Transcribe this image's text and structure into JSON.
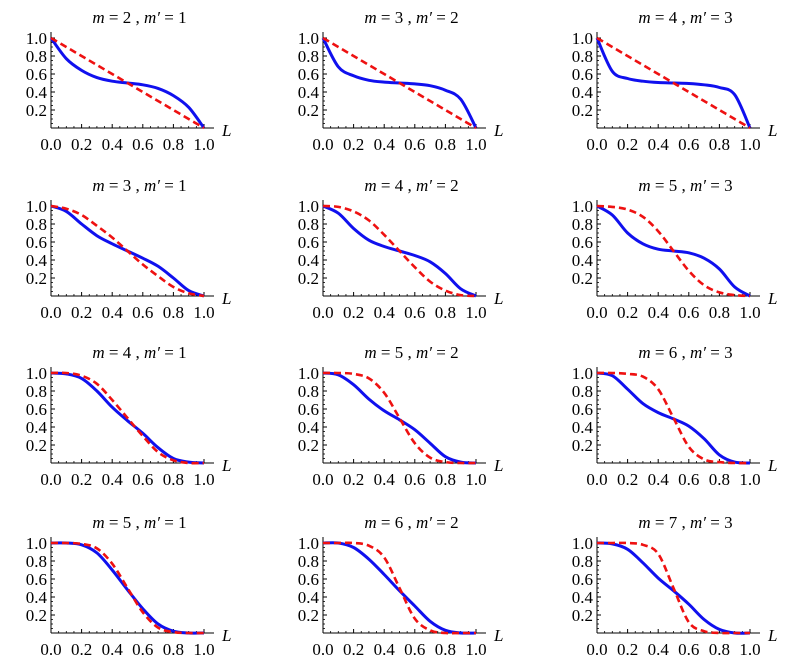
{
  "figure": {
    "colors": {
      "blue": "#1010ee",
      "red": "#ee1111",
      "axis": "#000000"
    },
    "x_tick_labels": [
      "0.0",
      "0.2",
      "0.4",
      "0.6",
      "0.8",
      "1.0"
    ],
    "y_tick_labels": [
      "0.2",
      "0.4",
      "0.6",
      "0.8",
      "1.0"
    ],
    "x_axis_label": "L"
  },
  "chart_data": [
    {
      "type": "line",
      "title": "m = 2 , m′ = 1",
      "xlabel": "L",
      "xlim": [
        0,
        1
      ],
      "ylim": [
        0,
        1
      ],
      "m": 2,
      "mp": 1,
      "series": [
        {
          "color": "#1010ee",
          "style": "solid",
          "x": [
            0,
            0.1,
            0.2,
            0.3,
            0.4,
            0.5,
            0.6,
            0.7,
            0.8,
            0.9,
            1.0
          ],
          "y": [
            1,
            0.77,
            0.64,
            0.56,
            0.52,
            0.5,
            0.48,
            0.44,
            0.36,
            0.23,
            0
          ]
        },
        {
          "color": "#ee1111",
          "style": "dashed",
          "x": [
            0,
            0.1,
            0.2,
            0.3,
            0.4,
            0.5,
            0.6,
            0.7,
            0.8,
            0.9,
            1.0
          ],
          "y": [
            1,
            0.9,
            0.8,
            0.7,
            0.6,
            0.5,
            0.4,
            0.3,
            0.2,
            0.1,
            0
          ]
        }
      ]
    },
    {
      "type": "line",
      "title": "m = 3 , m′ = 2",
      "xlabel": "L",
      "xlim": [
        0,
        1
      ],
      "ylim": [
        0,
        1
      ],
      "m": 3,
      "mp": 2,
      "series": [
        {
          "color": "#1010ee",
          "style": "solid",
          "x": [
            0,
            0.1,
            0.2,
            0.3,
            0.4,
            0.5,
            0.6,
            0.7,
            0.8,
            0.9,
            1.0
          ],
          "y": [
            1,
            0.68,
            0.58,
            0.53,
            0.51,
            0.5,
            0.49,
            0.47,
            0.42,
            0.32,
            0
          ]
        },
        {
          "color": "#ee1111",
          "style": "dashed",
          "x": [
            0,
            0.1,
            0.2,
            0.3,
            0.4,
            0.5,
            0.6,
            0.7,
            0.8,
            0.9,
            1.0
          ],
          "y": [
            1,
            0.9,
            0.8,
            0.7,
            0.6,
            0.5,
            0.4,
            0.3,
            0.2,
            0.1,
            0
          ]
        }
      ]
    },
    {
      "type": "line",
      "title": "m = 4 , m′ = 3",
      "xlabel": "L",
      "xlim": [
        0,
        1
      ],
      "ylim": [
        0,
        1
      ],
      "m": 4,
      "mp": 3,
      "series": [
        {
          "color": "#1010ee",
          "style": "solid",
          "x": [
            0,
            0.1,
            0.2,
            0.3,
            0.4,
            0.5,
            0.6,
            0.7,
            0.8,
            0.9,
            1.0
          ],
          "y": [
            1,
            0.63,
            0.55,
            0.52,
            0.505,
            0.5,
            0.495,
            0.48,
            0.45,
            0.37,
            0
          ]
        },
        {
          "color": "#ee1111",
          "style": "dashed",
          "x": [
            0,
            0.1,
            0.2,
            0.3,
            0.4,
            0.5,
            0.6,
            0.7,
            0.8,
            0.9,
            1.0
          ],
          "y": [
            1,
            0.9,
            0.8,
            0.7,
            0.6,
            0.5,
            0.4,
            0.3,
            0.2,
            0.1,
            0
          ]
        }
      ]
    },
    {
      "type": "line",
      "title": "m = 3 , m′ = 1",
      "xlabel": "L",
      "xlim": [
        0,
        1
      ],
      "ylim": [
        0,
        1
      ],
      "m": 3,
      "mp": 1,
      "series": [
        {
          "color": "#1010ee",
          "style": "solid",
          "x": [
            0,
            0.1,
            0.2,
            0.3,
            0.4,
            0.5,
            0.6,
            0.7,
            0.8,
            0.9,
            1.0
          ],
          "y": [
            1,
            0.94,
            0.8,
            0.67,
            0.58,
            0.5,
            0.42,
            0.33,
            0.2,
            0.06,
            0
          ]
        },
        {
          "color": "#ee1111",
          "style": "dashed",
          "x": [
            0,
            0.1,
            0.2,
            0.3,
            0.4,
            0.5,
            0.6,
            0.7,
            0.8,
            0.9,
            1.0
          ],
          "y": [
            1,
            0.97,
            0.9,
            0.78,
            0.65,
            0.5,
            0.35,
            0.22,
            0.1,
            0.03,
            0
          ]
        }
      ]
    },
    {
      "type": "line",
      "title": "m = 4 , m′ = 2",
      "xlabel": "L",
      "xlim": [
        0,
        1
      ],
      "ylim": [
        0,
        1
      ],
      "m": 4,
      "mp": 2,
      "series": [
        {
          "color": "#1010ee",
          "style": "solid",
          "x": [
            0,
            0.1,
            0.2,
            0.3,
            0.4,
            0.5,
            0.6,
            0.7,
            0.8,
            0.9,
            1.0
          ],
          "y": [
            1,
            0.92,
            0.75,
            0.62,
            0.55,
            0.5,
            0.45,
            0.38,
            0.25,
            0.08,
            0
          ]
        },
        {
          "color": "#ee1111",
          "style": "dashed",
          "x": [
            0,
            0.1,
            0.2,
            0.3,
            0.4,
            0.5,
            0.6,
            0.7,
            0.8,
            0.9,
            1.0
          ],
          "y": [
            1,
            0.99,
            0.94,
            0.84,
            0.68,
            0.5,
            0.32,
            0.16,
            0.06,
            0.01,
            0
          ]
        }
      ]
    },
    {
      "type": "line",
      "title": "m = 5 , m′ = 3",
      "xlabel": "L",
      "xlim": [
        0,
        1
      ],
      "ylim": [
        0,
        1
      ],
      "m": 5,
      "mp": 3,
      "series": [
        {
          "color": "#1010ee",
          "style": "solid",
          "x": [
            0,
            0.1,
            0.2,
            0.3,
            0.4,
            0.5,
            0.6,
            0.7,
            0.8,
            0.9,
            1.0
          ],
          "y": [
            1,
            0.9,
            0.7,
            0.58,
            0.52,
            0.5,
            0.48,
            0.42,
            0.3,
            0.1,
            0
          ]
        },
        {
          "color": "#ee1111",
          "style": "dashed",
          "x": [
            0,
            0.1,
            0.2,
            0.3,
            0.4,
            0.5,
            0.6,
            0.7,
            0.8,
            0.9,
            1.0
          ],
          "y": [
            1,
            0.99,
            0.96,
            0.88,
            0.72,
            0.5,
            0.28,
            0.12,
            0.04,
            0.01,
            0
          ]
        }
      ]
    },
    {
      "type": "line",
      "title": "m = 4 , m′ = 1",
      "xlabel": "L",
      "xlim": [
        0,
        1
      ],
      "ylim": [
        0,
        1
      ],
      "m": 4,
      "mp": 1,
      "series": [
        {
          "color": "#1010ee",
          "style": "solid",
          "x": [
            0,
            0.1,
            0.2,
            0.3,
            0.4,
            0.5,
            0.6,
            0.7,
            0.8,
            0.9,
            1.0
          ],
          "y": [
            1,
            0.99,
            0.94,
            0.8,
            0.62,
            0.47,
            0.33,
            0.17,
            0.05,
            0.01,
            0
          ]
        },
        {
          "color": "#ee1111",
          "style": "dashed",
          "x": [
            0,
            0.1,
            0.2,
            0.3,
            0.4,
            0.5,
            0.6,
            0.7,
            0.8,
            0.9,
            1.0
          ],
          "y": [
            1,
            1,
            0.97,
            0.88,
            0.7,
            0.5,
            0.3,
            0.12,
            0.03,
            0,
            0
          ]
        }
      ]
    },
    {
      "type": "line",
      "title": "m = 5 , m′ = 2",
      "xlabel": "L",
      "xlim": [
        0,
        1
      ],
      "ylim": [
        0,
        1
      ],
      "m": 5,
      "mp": 2,
      "series": [
        {
          "color": "#1010ee",
          "style": "solid",
          "x": [
            0,
            0.1,
            0.2,
            0.3,
            0.4,
            0.5,
            0.6,
            0.7,
            0.8,
            0.9,
            1.0
          ],
          "y": [
            1,
            0.98,
            0.87,
            0.71,
            0.58,
            0.48,
            0.37,
            0.22,
            0.07,
            0.01,
            0
          ]
        },
        {
          "color": "#ee1111",
          "style": "dashed",
          "x": [
            0,
            0.1,
            0.2,
            0.3,
            0.4,
            0.5,
            0.6,
            0.7,
            0.8,
            0.9,
            1.0
          ],
          "y": [
            1,
            1,
            0.99,
            0.94,
            0.78,
            0.5,
            0.22,
            0.06,
            0.01,
            0,
            0
          ]
        }
      ]
    },
    {
      "type": "line",
      "title": "m = 6 , m′ = 3",
      "xlabel": "L",
      "xlim": [
        0,
        1
      ],
      "ylim": [
        0,
        1
      ],
      "m": 6,
      "mp": 3,
      "series": [
        {
          "color": "#1010ee",
          "style": "solid",
          "x": [
            0,
            0.1,
            0.2,
            0.3,
            0.4,
            0.5,
            0.6,
            0.7,
            0.8,
            0.9,
            1.0
          ],
          "y": [
            1,
            0.97,
            0.82,
            0.66,
            0.56,
            0.49,
            0.41,
            0.27,
            0.09,
            0.01,
            0
          ]
        },
        {
          "color": "#ee1111",
          "style": "dashed",
          "x": [
            0,
            0.1,
            0.2,
            0.3,
            0.4,
            0.5,
            0.6,
            0.7,
            0.8,
            0.9,
            1.0
          ],
          "y": [
            1,
            1,
            0.99,
            0.96,
            0.82,
            0.5,
            0.18,
            0.04,
            0.01,
            0,
            0
          ]
        }
      ]
    },
    {
      "type": "line",
      "title": "m = 5 , m′ = 1",
      "xlabel": "L",
      "xlim": [
        0,
        1
      ],
      "ylim": [
        0,
        1
      ],
      "m": 5,
      "mp": 1,
      "series": [
        {
          "color": "#1010ee",
          "style": "solid",
          "x": [
            0,
            0.1,
            0.2,
            0.3,
            0.4,
            0.5,
            0.6,
            0.7,
            0.8,
            0.9,
            1.0
          ],
          "y": [
            1,
            1,
            0.98,
            0.89,
            0.7,
            0.48,
            0.27,
            0.1,
            0.02,
            0,
            0
          ]
        },
        {
          "color": "#ee1111",
          "style": "dashed",
          "x": [
            0,
            0.1,
            0.2,
            0.3,
            0.4,
            0.5,
            0.6,
            0.7,
            0.8,
            0.9,
            1.0
          ],
          "y": [
            1,
            1,
            0.99,
            0.94,
            0.77,
            0.5,
            0.23,
            0.06,
            0.01,
            0,
            0
          ]
        }
      ]
    },
    {
      "type": "line",
      "title": "m = 6 , m′ = 2",
      "xlabel": "L",
      "xlim": [
        0,
        1
      ],
      "ylim": [
        0,
        1
      ],
      "m": 6,
      "mp": 2,
      "series": [
        {
          "color": "#1010ee",
          "style": "solid",
          "x": [
            0,
            0.1,
            0.2,
            0.3,
            0.4,
            0.5,
            0.6,
            0.7,
            0.8,
            0.9,
            1.0
          ],
          "y": [
            1,
            1,
            0.95,
            0.82,
            0.65,
            0.47,
            0.3,
            0.13,
            0.03,
            0,
            0
          ]
        },
        {
          "color": "#ee1111",
          "style": "dashed",
          "x": [
            0,
            0.1,
            0.2,
            0.3,
            0.4,
            0.5,
            0.6,
            0.7,
            0.8,
            0.9,
            1.0
          ],
          "y": [
            1,
            1,
            1,
            0.97,
            0.84,
            0.5,
            0.16,
            0.03,
            0,
            0,
            0
          ]
        }
      ]
    },
    {
      "type": "line",
      "title": "m = 7 , m′ = 3",
      "xlabel": "L",
      "xlim": [
        0,
        1
      ],
      "ylim": [
        0,
        1
      ],
      "m": 7,
      "mp": 3,
      "series": [
        {
          "color": "#1010ee",
          "style": "solid",
          "x": [
            0,
            0.1,
            0.2,
            0.3,
            0.4,
            0.5,
            0.6,
            0.7,
            0.8,
            0.9,
            1.0
          ],
          "y": [
            1,
            0.99,
            0.93,
            0.78,
            0.61,
            0.47,
            0.32,
            0.15,
            0.04,
            0,
            0
          ]
        },
        {
          "color": "#ee1111",
          "style": "dashed",
          "x": [
            0,
            0.1,
            0.2,
            0.3,
            0.4,
            0.5,
            0.6,
            0.7,
            0.8,
            0.9,
            1.0
          ],
          "y": [
            1,
            1,
            1,
            0.98,
            0.88,
            0.5,
            0.12,
            0.02,
            0,
            0,
            0
          ]
        }
      ]
    }
  ]
}
